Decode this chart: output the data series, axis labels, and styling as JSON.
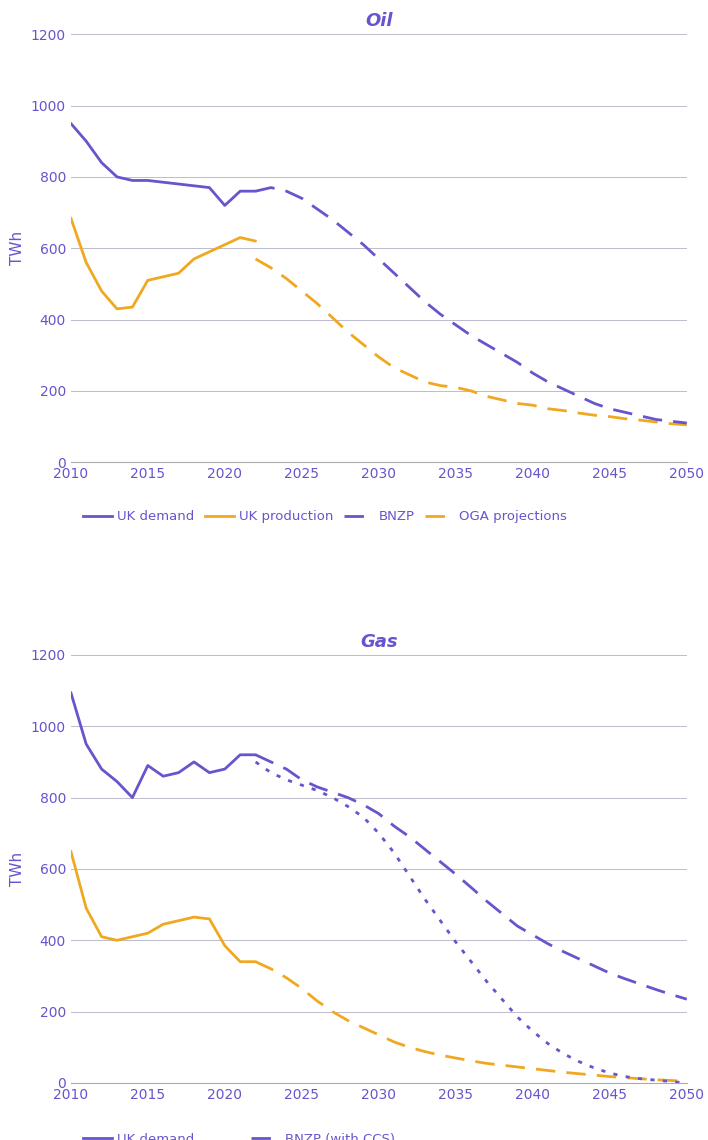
{
  "oil_title": "Oil",
  "gas_title": "Gas",
  "ylabel": "TWh",
  "color_purple": "#6655cc",
  "color_orange": "#f0a820",
  "xlim": [
    2010,
    2050
  ],
  "ylim": [
    0,
    1200
  ],
  "yticks": [
    0,
    200,
    400,
    600,
    800,
    1000,
    1200
  ],
  "xticks": [
    2010,
    2015,
    2020,
    2025,
    2030,
    2035,
    2040,
    2045,
    2050
  ],
  "oil_uk_demand_x": [
    2010,
    2011,
    2012,
    2013,
    2014,
    2015,
    2016,
    2017,
    2018,
    2019,
    2020,
    2021,
    2022
  ],
  "oil_uk_demand_y": [
    950,
    900,
    840,
    800,
    790,
    790,
    785,
    780,
    775,
    770,
    720,
    760,
    760
  ],
  "oil_uk_production_x": [
    2010,
    2011,
    2012,
    2013,
    2014,
    2015,
    2016,
    2017,
    2018,
    2019,
    2020,
    2021,
    2022
  ],
  "oil_uk_production_y": [
    685,
    560,
    480,
    430,
    435,
    510,
    520,
    530,
    570,
    590,
    610,
    630,
    620
  ],
  "oil_bnzp_x": [
    2022,
    2023,
    2024,
    2025,
    2026,
    2027,
    2028,
    2029,
    2030,
    2031,
    2032,
    2033,
    2034,
    2035,
    2036,
    2037,
    2038,
    2039,
    2040,
    2041,
    2042,
    2043,
    2044,
    2045,
    2046,
    2047,
    2048,
    2049,
    2050
  ],
  "oil_bnzp_y": [
    760,
    770,
    760,
    740,
    710,
    680,
    645,
    610,
    570,
    530,
    490,
    450,
    415,
    385,
    355,
    330,
    305,
    280,
    250,
    225,
    205,
    185,
    165,
    150,
    140,
    130,
    120,
    115,
    110
  ],
  "oil_oga_x": [
    2022,
    2023,
    2024,
    2025,
    2026,
    2027,
    2028,
    2029,
    2030,
    2031,
    2032,
    2033,
    2034,
    2035,
    2036,
    2037,
    2038,
    2039,
    2040,
    2041,
    2042,
    2043,
    2044,
    2045,
    2046,
    2047,
    2048,
    2049,
    2050
  ],
  "oil_oga_y": [
    570,
    545,
    515,
    480,
    445,
    405,
    365,
    330,
    295,
    265,
    245,
    225,
    215,
    210,
    200,
    185,
    175,
    165,
    160,
    150,
    145,
    138,
    132,
    128,
    122,
    118,
    113,
    108,
    105
  ],
  "gas_uk_demand_x": [
    2010,
    2011,
    2012,
    2013,
    2014,
    2015,
    2016,
    2017,
    2018,
    2019,
    2020,
    2021,
    2022
  ],
  "gas_uk_demand_y": [
    1095,
    950,
    880,
    845,
    800,
    890,
    860,
    870,
    900,
    870,
    880,
    920,
    920
  ],
  "gas_uk_production_x": [
    2010,
    2011,
    2012,
    2013,
    2014,
    2015,
    2016,
    2017,
    2018,
    2019,
    2020,
    2021,
    2022
  ],
  "gas_uk_production_y": [
    650,
    490,
    410,
    400,
    410,
    420,
    445,
    455,
    465,
    460,
    385,
    340,
    340
  ],
  "gas_bnzp_ccs_x": [
    2022,
    2023,
    2024,
    2025,
    2026,
    2027,
    2028,
    2029,
    2030,
    2031,
    2032,
    2033,
    2034,
    2035,
    2036,
    2037,
    2038,
    2039,
    2040,
    2041,
    2042,
    2043,
    2044,
    2045,
    2046,
    2047,
    2048,
    2049,
    2050
  ],
  "gas_bnzp_ccs_y": [
    920,
    900,
    880,
    850,
    830,
    815,
    800,
    780,
    755,
    720,
    690,
    655,
    620,
    585,
    548,
    510,
    475,
    440,
    415,
    390,
    368,
    348,
    328,
    308,
    292,
    277,
    262,
    248,
    235
  ],
  "gas_bnzp_unabated_x": [
    2022,
    2023,
    2024,
    2025,
    2026,
    2027,
    2028,
    2029,
    2030,
    2031,
    2032,
    2033,
    2034,
    2035,
    2036,
    2037,
    2038,
    2039,
    2040,
    2041,
    2042,
    2043,
    2044,
    2045,
    2046,
    2047,
    2048,
    2049,
    2050
  ],
  "gas_bnzp_unabated_y": [
    900,
    870,
    850,
    835,
    820,
    800,
    775,
    745,
    700,
    645,
    580,
    515,
    455,
    395,
    340,
    285,
    235,
    185,
    145,
    110,
    82,
    60,
    42,
    28,
    18,
    12,
    8,
    4,
    0
  ],
  "gas_oga_x": [
    2022,
    2023,
    2024,
    2025,
    2026,
    2027,
    2028,
    2029,
    2030,
    2031,
    2032,
    2033,
    2034,
    2035,
    2036,
    2037,
    2038,
    2039,
    2040,
    2041,
    2042,
    2043,
    2044,
    2045,
    2046,
    2047,
    2048,
    2049,
    2050
  ],
  "gas_oga_y": [
    340,
    320,
    295,
    265,
    230,
    200,
    175,
    155,
    135,
    115,
    100,
    88,
    78,
    70,
    62,
    55,
    50,
    45,
    40,
    35,
    30,
    26,
    22,
    18,
    15,
    12,
    9,
    7,
    5
  ]
}
